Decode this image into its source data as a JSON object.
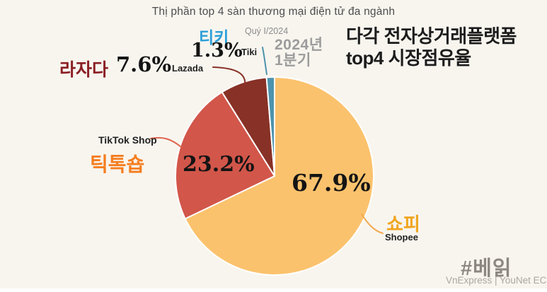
{
  "title": "Thị phần top 4 sàn thương mại điện tử đa ngành",
  "korean_title": {
    "line1": "다각 전자상거래플랫폼",
    "line2": "top4 시장점유율"
  },
  "period": {
    "vn": "Quý I/2024",
    "kr_line1": "2024년",
    "kr_line2": "1분기"
  },
  "footer": {
    "hashtag": "#베읽",
    "source": "VnExpress | YouNet ECI"
  },
  "colors": {
    "background": "#F8F5EF",
    "slice_stroke": "#FFFFFF",
    "title_text": "#4D4D4D",
    "korean_title_text": "#1C1C1C",
    "percent_text": "#141414",
    "period_text": "#9C9C9C",
    "footer_text": "#8C8880"
  },
  "chart_data": {
    "type": "pie",
    "title": "Thị phần top 4 sàn thương mại điện tử đa ngành",
    "period": "Quý I/2024",
    "unit": "%",
    "start_angle_deg": 0,
    "direction": "clockwise",
    "legend_position": "around-pie",
    "slices": [
      {
        "name": "Shopee",
        "name_kr": "쇼피",
        "value": 67.9,
        "pct_label": "67.9%",
        "color": "#FBC26D",
        "label_color": "#F0A51F",
        "leader_color": "#F2A94F"
      },
      {
        "name": "TikTok Shop",
        "name_kr": "틱톡숍",
        "value": 23.2,
        "pct_label": "23.2%",
        "color": "#D2564A",
        "label_color": "#F57E20",
        "leader_color": "#E0654F"
      },
      {
        "name": "Lazada",
        "name_kr": "라자다",
        "value": 7.6,
        "pct_label": "7.6%",
        "color": "#883126",
        "label_color": "#8B1F24",
        "leader_color": "#883126"
      },
      {
        "name": "Tiki",
        "name_kr": "티키",
        "value": 1.3,
        "pct_label": "1.3%",
        "color": "#4E93AE",
        "label_color": "#2B9FD9",
        "leader_color": "#4E93AE"
      }
    ]
  }
}
